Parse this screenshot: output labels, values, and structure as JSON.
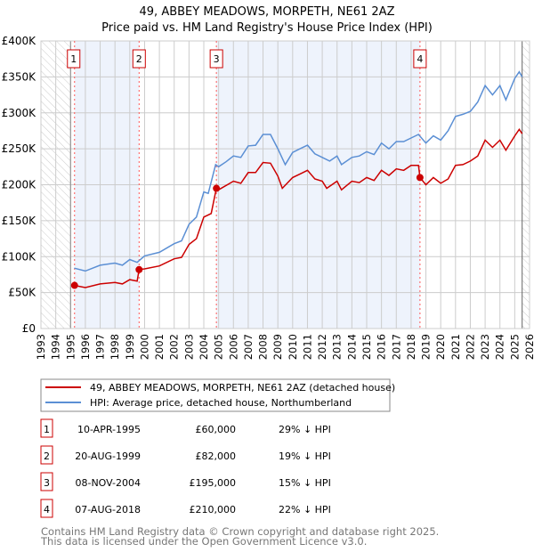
{
  "chart_data": {
    "type": "line",
    "title": "49, ABBEY MEADOWS, MORPETH, NE61 2AZ",
    "subtitle": "Price paid vs. HM Land Registry's House Price Index (HPI)",
    "xlim": [
      1993,
      2026
    ],
    "ylim": [
      0,
      400000
    ],
    "x_ticks": [
      "1993",
      "1994",
      "1995",
      "1996",
      "1997",
      "1998",
      "1999",
      "2000",
      "2001",
      "2002",
      "2003",
      "2004",
      "2005",
      "2006",
      "2007",
      "2008",
      "2009",
      "2010",
      "2011",
      "2012",
      "2013",
      "2014",
      "2015",
      "2016",
      "2017",
      "2018",
      "2019",
      "2020",
      "2021",
      "2022",
      "2023",
      "2024",
      "2025",
      "2026"
    ],
    "y_ticks": [
      {
        "v": 0,
        "label": "£0"
      },
      {
        "v": 50000,
        "label": "£50K"
      },
      {
        "v": 100000,
        "label": "£100K"
      },
      {
        "v": 150000,
        "label": "£150K"
      },
      {
        "v": 200000,
        "label": "£200K"
      },
      {
        "v": 250000,
        "label": "£250K"
      },
      {
        "v": 300000,
        "label": "£300K"
      },
      {
        "v": 350000,
        "label": "£350K"
      },
      {
        "v": 400000,
        "label": "£400K"
      }
    ],
    "grid": true,
    "hatched_ranges": [
      [
        1993,
        1995.0
      ],
      [
        2025.5,
        2026
      ]
    ],
    "series": [
      {
        "name": "49, ABBEY MEADOWS, MORPETH, NE61 2AZ (detached house)",
        "color": "#cc0000",
        "x": [
          1995.27,
          1996,
          1997,
          1998,
          1998.5,
          1999,
          1999.5,
          1999.63,
          2000,
          2001,
          2002,
          2002.5,
          2003,
          2003.5,
          2004,
          2004.5,
          2004.85,
          2005,
          2006,
          2006.5,
          2007,
          2007.5,
          2008,
          2008.5,
          2009,
          2009.3,
          2010,
          2010.5,
          2011,
          2011.5,
          2012,
          2012.3,
          2013,
          2013.3,
          2014,
          2014.5,
          2015,
          2015.5,
          2016,
          2016.5,
          2017,
          2017.5,
          2018,
          2018.5,
          2018.6,
          2019,
          2019.5,
          2020,
          2020.5,
          2021,
          2021.5,
          2022,
          2022.5,
          2023,
          2023.5,
          2024,
          2024.4,
          2025,
          2025.3,
          2025.5
        ],
        "y": [
          60000,
          57000,
          62000,
          64000,
          62000,
          68000,
          66000,
          82000,
          83000,
          87000,
          97000,
          99000,
          117000,
          125000,
          155000,
          160000,
          195000,
          193000,
          205000,
          202000,
          217000,
          217000,
          231000,
          230000,
          212000,
          195000,
          210000,
          215000,
          220000,
          208000,
          205000,
          195000,
          205000,
          193000,
          205000,
          203000,
          210000,
          206000,
          220000,
          213000,
          222000,
          220000,
          227000,
          227000,
          210000,
          200000,
          210000,
          202000,
          208000,
          227000,
          228000,
          233000,
          240000,
          262000,
          252000,
          262000,
          248000,
          268000,
          277000,
          271000
        ]
      },
      {
        "name": "HPI: Average price, detached house, Northumberland",
        "color": "#5b8fd4",
        "x": [
          1995.25,
          1996,
          1997,
          1998,
          1998.5,
          1999,
          1999.5,
          2000,
          2001,
          2002,
          2002.5,
          2003,
          2003.5,
          2004,
          2004.3,
          2004.8,
          2005,
          2005.5,
          2006,
          2006.5,
          2007,
          2007.5,
          2008,
          2008.5,
          2009,
          2009.5,
          2010,
          2010.5,
          2011,
          2011.5,
          2012,
          2012.5,
          2013,
          2013.3,
          2014,
          2014.5,
          2015,
          2015.5,
          2016,
          2016.5,
          2017,
          2017.5,
          2018,
          2018.5,
          2019,
          2019.5,
          2020,
          2020.5,
          2021,
          2021.5,
          2022,
          2022.5,
          2023,
          2023.5,
          2024,
          2024.4,
          2025,
          2025.3,
          2025.5
        ],
        "y": [
          84000,
          80000,
          88000,
          91000,
          88000,
          96000,
          92000,
          101000,
          106000,
          118000,
          122000,
          145000,
          155000,
          190000,
          188000,
          228000,
          225000,
          232000,
          240000,
          238000,
          254000,
          255000,
          270000,
          270000,
          250000,
          228000,
          245000,
          250000,
          255000,
          243000,
          238000,
          233000,
          240000,
          228000,
          238000,
          240000,
          246000,
          242000,
          258000,
          250000,
          260000,
          260000,
          265000,
          270000,
          258000,
          268000,
          262000,
          275000,
          295000,
          298000,
          302000,
          315000,
          338000,
          325000,
          338000,
          318000,
          348000,
          357000,
          350000
        ]
      }
    ],
    "sales": [
      {
        "n": "1",
        "x": 1995.27,
        "price": 60000,
        "date": "10-APR-1995",
        "price_label": "£60,000",
        "hpi": "29% ↓ HPI"
      },
      {
        "n": "2",
        "x": 1999.63,
        "price": 82000,
        "date": "20-AUG-1999",
        "price_label": "£82,000",
        "hpi": "19% ↓ HPI"
      },
      {
        "n": "3",
        "x": 2004.85,
        "price": 195000,
        "date": "08-NOV-2004",
        "price_label": "£195,000",
        "hpi": "15% ↓ HPI"
      },
      {
        "n": "4",
        "x": 2018.6,
        "price": 210000,
        "date": "07-AUG-2018",
        "price_label": "£210,000",
        "hpi": "22% ↓ HPI"
      }
    ],
    "legend_placement": "below",
    "footer": [
      "Contains HM Land Registry data © Crown copyright and database right 2025.",
      "This data is licensed under the Open Government Licence v3.0."
    ]
  }
}
